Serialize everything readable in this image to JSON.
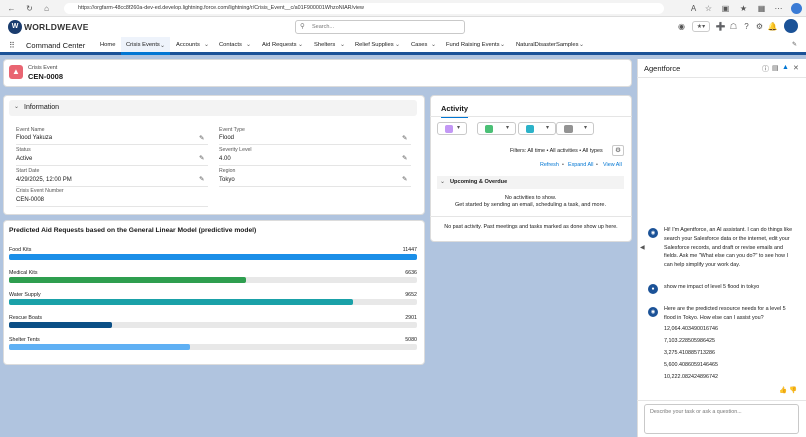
{
  "browser": {
    "url": "https://orgfarm-48cc8f260a-dev-ed.develop.lightning.force.com/lightning/r/Crisis_Event__c/a01F900001WhzoNIAR/view"
  },
  "header": {
    "brand": "WORLDWEAVE",
    "search_placeholder": "Search..."
  },
  "nav": {
    "app_name": "Command Center",
    "items": [
      "Home",
      "Crisis Events",
      "Accounts",
      "Contacts",
      "Aid Requests",
      "Shelters",
      "Relief Supplies",
      "Cases",
      "Fund Raising Events",
      "NaturalDisasterSamples"
    ]
  },
  "record": {
    "type": "Crisis Event",
    "name": "CEN-0008"
  },
  "info": {
    "section_title": "Information",
    "fields": [
      {
        "label": "Event Name",
        "value": "Flood Yakuza"
      },
      {
        "label": "Event Type",
        "value": "Flood"
      },
      {
        "label": "Status",
        "value": "Active"
      },
      {
        "label": "Severity Level",
        "value": "4.00"
      },
      {
        "label": "Start Date",
        "value": "4/29/2025, 12:00 PM"
      },
      {
        "label": "Region",
        "value": "Tokyo"
      },
      {
        "label": "Crisis Event Number",
        "value": "CEN-0008"
      }
    ]
  },
  "chart_data": {
    "type": "bar",
    "title": "Predicted Aid Requests based on the General Linear Model (predictive model)",
    "categories": [
      "Food Kits",
      "Medical Kits",
      "Water Supply",
      "Rescue Boats",
      "Shelter Tents"
    ],
    "values": [
      11447,
      6636,
      9652,
      2901,
      5080
    ],
    "colors": [
      "#1b8fe8",
      "#2e9e4f",
      "#1aa1a8",
      "#0b4f86",
      "#5fb0f4"
    ],
    "xlim": [
      0,
      11447
    ]
  },
  "activity": {
    "title": "Activity",
    "filters": "Filters: All time • All activities • All types",
    "links": [
      "Refresh",
      "Expand All",
      "View All"
    ],
    "upcoming": "Upcoming & Overdue",
    "no_activities": "No activities to show.",
    "get_started": "Get started by sending an email, scheduling a task, and more.",
    "no_past": "No past activity. Past meetings and tasks marked as done show up here.",
    "colors": {
      "email": "#939393",
      "task": "#4bc076",
      "event": "#2cb3c9",
      "call": "#c398f5"
    }
  },
  "agent": {
    "title": "Agentforce",
    "intro": "Hi! I'm Agentforce, an AI assistant. I can do things like search your Salesforce data or the internet, edit your Salesforce records, and draft or revise emails and fields. Ask me \"What else can you do?\" to see how I can help simplify your work day.",
    "user_msg": "show me impact of level 5 flood in tokyo",
    "reply": "Here are the predicted resource needs for a level 5 flood in Tokyo. How else can I assist you?",
    "values": [
      "12,064.403490016746",
      "7,103.228505986425",
      "3,275.410885713286",
      "5,600.4086059146465",
      "10,222.082424896742"
    ],
    "input_placeholder": "Describe your task or ask a question..."
  }
}
